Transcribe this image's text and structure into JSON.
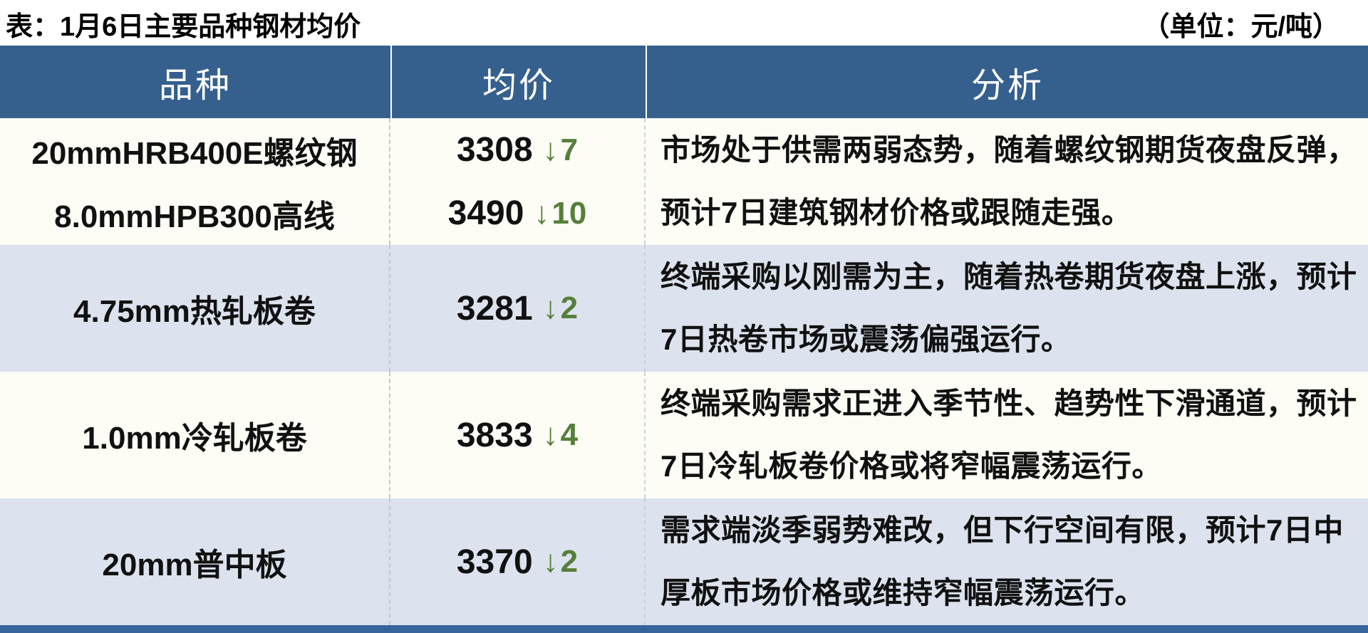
{
  "title": "表：1月6日主要品种钢材均价",
  "unit_label": "（单位：元/吨）",
  "symbols": {
    "down_arrow": "↓"
  },
  "colors": {
    "header_bg": "#35608E",
    "row_cream": "#FDFDF6",
    "row_blue": "#DCE3EE",
    "change_green": "#567F3A",
    "bottom_bar": "#38639B",
    "header_text": "#FFFFFF",
    "body_text": "#111111"
  },
  "table": {
    "headers": {
      "variety": "品种",
      "price": "均价",
      "analysis": "分析"
    },
    "rows": [
      {
        "varieties": [
          {
            "name": "20mmHRB400E螺纹钢",
            "price": "3308",
            "change": "7"
          },
          {
            "name": "8.0mmHPB300高线",
            "price": "3490",
            "change": "10"
          }
        ],
        "analysis": "市场处于供需两弱态势，随着螺纹钢期货夜盘反弹，预计7日建筑钢材价格或跟随走强。"
      },
      {
        "varieties": [
          {
            "name": "4.75mm热轧板卷",
            "price": "3281",
            "change": "2"
          }
        ],
        "analysis": "终端采购以刚需为主，随着热卷期货夜盘上涨，预计7日热卷市场或震荡偏强运行。"
      },
      {
        "varieties": [
          {
            "name": "1.0mm冷轧板卷",
            "price": "3833",
            "change": "4"
          }
        ],
        "analysis": "终端采购需求正进入季节性、趋势性下滑通道，预计7日冷轧板卷价格或将窄幅震荡运行。"
      },
      {
        "varieties": [
          {
            "name": "20mm普中板",
            "price": "3370",
            "change": "2"
          }
        ],
        "analysis": "需求端淡季弱势难改，但下行空间有限，预计7日中厚板市场价格或维持窄幅震荡运行。"
      }
    ]
  }
}
